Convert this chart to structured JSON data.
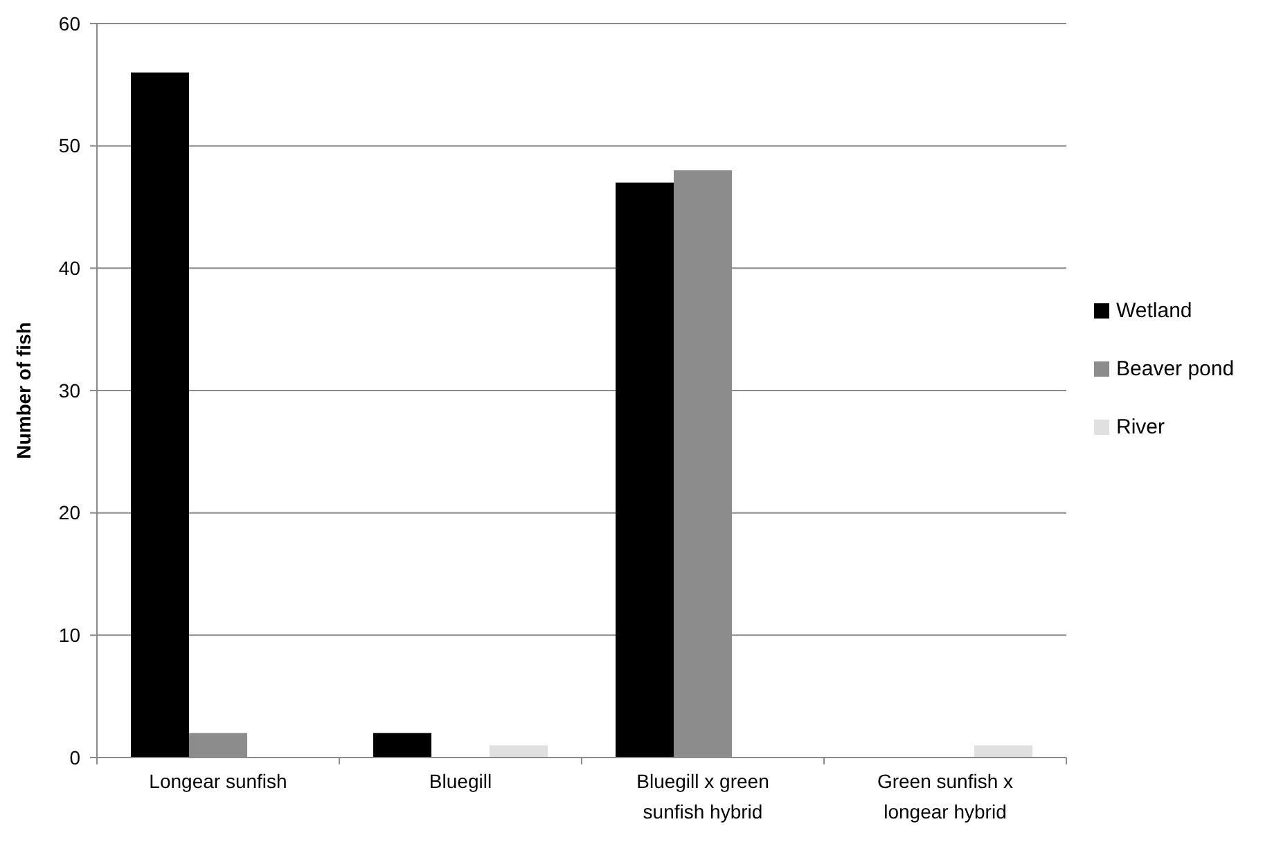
{
  "chart_data": {
    "type": "bar",
    "ylabel": "Number of fish",
    "categories": [
      "Longear sunfish",
      "Bluegill",
      "Bluegill x green sunfish hybrid",
      "Green sunfish x longear hybrid"
    ],
    "series": [
      {
        "name": "Wetland",
        "color": "#000000",
        "values": [
          56,
          2,
          47,
          0
        ]
      },
      {
        "name": "Beaver pond",
        "color": "#8c8c8c",
        "values": [
          2,
          0,
          48,
          0
        ]
      },
      {
        "name": "River",
        "color": "#e0e0e0",
        "values": [
          0,
          1,
          0,
          1
        ]
      }
    ],
    "ylim": [
      0,
      60
    ],
    "yticks": [
      0,
      10,
      20,
      30,
      40,
      50,
      60
    ],
    "grid": "y",
    "legend": "right"
  }
}
